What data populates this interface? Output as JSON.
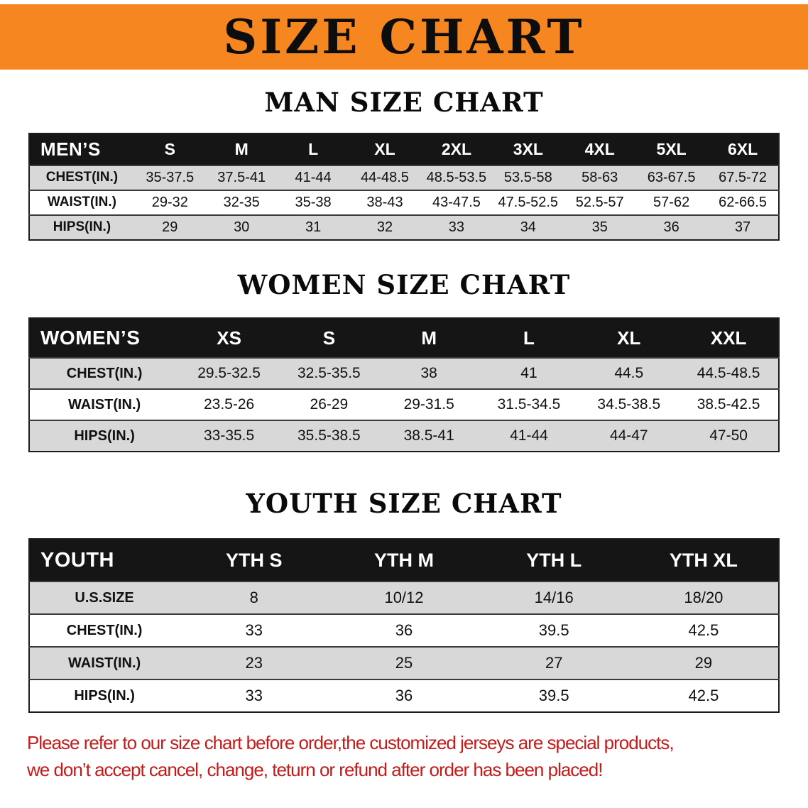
{
  "banner": {
    "title": "SIZE CHART"
  },
  "mens": {
    "heading": "MAN SIZE CHART",
    "label": "MEN’S",
    "columns": [
      "S",
      "M",
      "L",
      "XL",
      "2XL",
      "3XL",
      "4XL",
      "5XL",
      "6XL"
    ],
    "rows": [
      {
        "label": "CHEST(IN.)",
        "values": [
          "35-37.5",
          "37.5-41",
          "41-44",
          "44-48.5",
          "48.5-53.5",
          "53.5-58",
          "58-63",
          "63-67.5",
          "67.5-72"
        ]
      },
      {
        "label": "WAIST(IN.)",
        "values": [
          "29-32",
          "32-35",
          "35-38",
          "38-43",
          "43-47.5",
          "47.5-52.5",
          "52.5-57",
          "57-62",
          "62-66.5"
        ]
      },
      {
        "label": "HIPS(IN.)",
        "values": [
          "29",
          "30",
          "31",
          "32",
          "33",
          "34",
          "35",
          "36",
          "37"
        ]
      }
    ]
  },
  "womens": {
    "heading": "WOMEN SIZE CHART",
    "label": "WOMEN’S",
    "columns": [
      "XS",
      "S",
      "M",
      "L",
      "XL",
      "XXL"
    ],
    "rows": [
      {
        "label": "CHEST(IN.)",
        "values": [
          "29.5-32.5",
          "32.5-35.5",
          "38",
          "41",
          "44.5",
          "44.5-48.5"
        ]
      },
      {
        "label": "WAIST(IN.)",
        "values": [
          "23.5-26",
          "26-29",
          "29-31.5",
          "31.5-34.5",
          "34.5-38.5",
          "38.5-42.5"
        ]
      },
      {
        "label": "HIPS(IN.)",
        "values": [
          "33-35.5",
          "35.5-38.5",
          "38.5-41",
          "41-44",
          "44-47",
          "47-50"
        ]
      }
    ]
  },
  "youth": {
    "heading": "YOUTH SIZE CHART",
    "label": "YOUTH",
    "columns": [
      "YTH S",
      "YTH M",
      "YTH L",
      "YTH XL"
    ],
    "rows": [
      {
        "label": "U.S.SIZE",
        "values": [
          "8",
          "10/12",
          "14/16",
          "18/20"
        ]
      },
      {
        "label": "CHEST(IN.)",
        "values": [
          "33",
          "36",
          "39.5",
          "42.5"
        ]
      },
      {
        "label": "WAIST(IN.)",
        "values": [
          "23",
          "25",
          "27",
          "29"
        ]
      },
      {
        "label": "HIPS(IN.)",
        "values": [
          "33",
          "36",
          "39.5",
          "42.5"
        ]
      }
    ]
  },
  "disclaimer": {
    "line1": "Please refer to our size chart before order,the customized jerseys are special products,",
    "line2": "we don’t accept cancel, change, teturn or refund after order has been placed!"
  },
  "colors": {
    "banner_bg": "#f6861f",
    "table_header_bg": "#151515",
    "row_alt_bg": "#d8d8d8",
    "disclaimer_text": "#c41b1b"
  }
}
